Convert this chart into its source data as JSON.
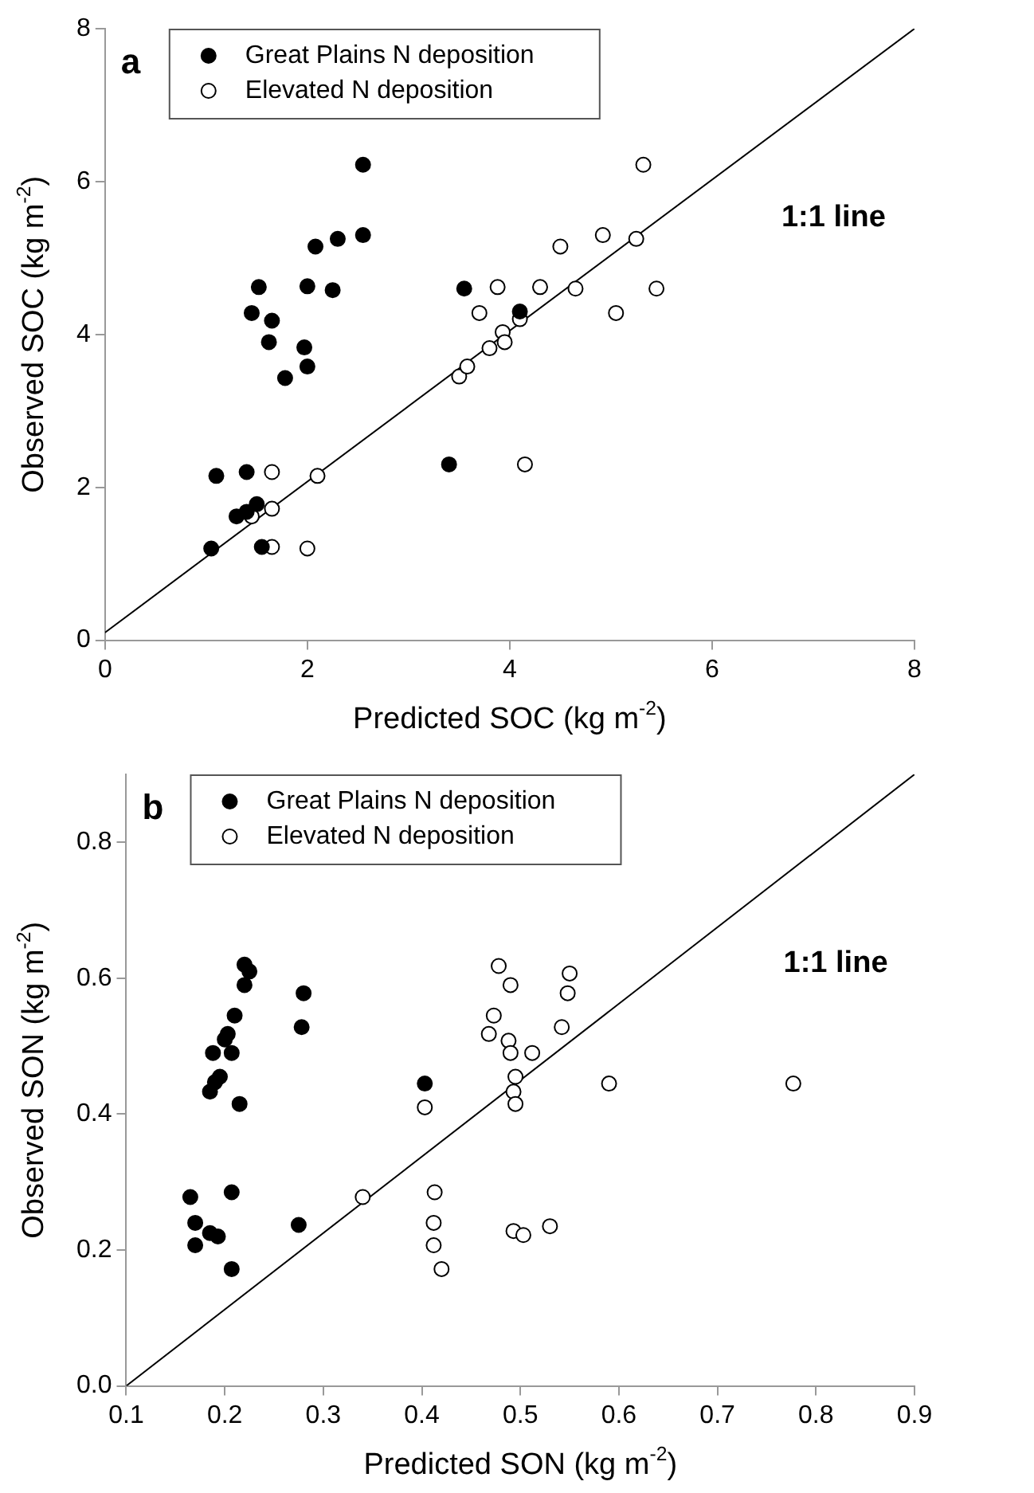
{
  "chart_data": [
    {
      "type": "scatter",
      "xlabel": "Predicted SOC (kg m$^{-2}$)",
      "ylabel": "Observed SOC (kg m$^{-2}$)",
      "xlim": [
        0,
        8
      ],
      "ylim": [
        0,
        8
      ],
      "xticks": [
        0,
        2,
        4,
        6,
        8
      ],
      "yticks": [
        0,
        2,
        4,
        6,
        8
      ],
      "grid": false,
      "legend": "top left",
      "annotations": [
        "a",
        "1:1 line"
      ],
      "series": [
        {
          "name": "Great Plains N deposition",
          "marker": "circle",
          "color": "#000000",
          "x": [
            1.05,
            1.1,
            1.3,
            1.4,
            1.4,
            1.5,
            1.55,
            1.45,
            1.52,
            1.62,
            1.65,
            1.78,
            1.97,
            2.0,
            2.0,
            2.08,
            2.3,
            2.25,
            2.55,
            2.55,
            3.4,
            3.55,
            4.1
          ],
          "values": [
            1.2,
            2.15,
            1.62,
            1.68,
            2.2,
            1.78,
            1.22,
            4.28,
            4.62,
            3.9,
            4.18,
            3.43,
            3.83,
            4.63,
            3.58,
            5.15,
            5.25,
            4.58,
            5.3,
            6.22,
            2.3,
            4.6,
            4.3
          ]
        },
        {
          "name": "Elevated N deposition",
          "marker": "circle",
          "color": "#ffffff",
          "x": [
            1.45,
            1.65,
            1.65,
            1.65,
            2.0,
            2.1,
            3.5,
            3.58,
            3.7,
            3.8,
            3.88,
            3.93,
            3.95,
            4.1,
            4.15,
            4.3,
            4.5,
            4.65,
            4.92,
            5.05,
            5.25,
            5.32,
            5.45
          ],
          "values": [
            1.62,
            2.2,
            1.72,
            1.22,
            1.2,
            2.15,
            3.45,
            3.58,
            4.28,
            3.82,
            4.62,
            4.03,
            3.9,
            4.2,
            2.3,
            4.62,
            5.15,
            4.6,
            5.3,
            4.28,
            5.25,
            6.22,
            4.6
          ]
        },
        {
          "type": "line",
          "color": "#000000",
          "x": [
            0,
            8
          ],
          "values": [
            0.1,
            8
          ]
        }
      ]
    },
    {
      "type": "scatter",
      "xlabel": "Predicted SON (kg m$^{-2}$)",
      "ylabel": "Observed SON (kg m$^{-2}$)",
      "xlim": [
        0.1,
        0.9
      ],
      "ylim": [
        0,
        0.9
      ],
      "xticks": [
        0.1,
        0.2,
        0.3,
        0.4,
        0.5,
        0.6,
        0.7,
        0.8,
        0.9
      ],
      "yticks": [
        {
          "value": 0,
          "label": "0.0"
        },
        0.2,
        0.4,
        0.6,
        0.8
      ],
      "grid": false,
      "legend": "top left",
      "annotations": [
        "b",
        "1:1 line"
      ],
      "series": [
        {
          "name": "Great Plains N deposition",
          "marker": "circle",
          "color": "#000000",
          "x": [
            0.165,
            0.17,
            0.17,
            0.185,
            0.193,
            0.207,
            0.207,
            0.185,
            0.19,
            0.195,
            0.188,
            0.2,
            0.203,
            0.207,
            0.21,
            0.215,
            0.22,
            0.225,
            0.22,
            0.28,
            0.278,
            0.275,
            0.403
          ],
          "values": [
            0.278,
            0.24,
            0.207,
            0.225,
            0.22,
            0.285,
            0.172,
            0.433,
            0.447,
            0.455,
            0.49,
            0.51,
            0.518,
            0.49,
            0.545,
            0.415,
            0.62,
            0.61,
            0.59,
            0.578,
            0.528,
            0.237,
            0.445
          ]
        },
        {
          "name": "Elevated N deposition",
          "marker": "circle",
          "color": "#ffffff",
          "x": [
            0.34,
            0.403,
            0.413,
            0.412,
            0.412,
            0.42,
            0.478,
            0.49,
            0.473,
            0.468,
            0.488,
            0.49,
            0.512,
            0.495,
            0.493,
            0.495,
            0.55,
            0.548,
            0.542,
            0.59,
            0.777,
            0.493,
            0.503,
            0.53
          ],
          "values": [
            0.278,
            0.41,
            0.285,
            0.24,
            0.207,
            0.172,
            0.618,
            0.59,
            0.545,
            0.518,
            0.508,
            0.49,
            0.49,
            0.455,
            0.433,
            0.415,
            0.607,
            0.578,
            0.528,
            0.445,
            0.445,
            0.228,
            0.222,
            0.235
          ]
        },
        {
          "type": "line",
          "color": "#000000",
          "x": [
            0.1,
            0.9
          ],
          "values": [
            0,
            0.9
          ]
        }
      ]
    }
  ]
}
